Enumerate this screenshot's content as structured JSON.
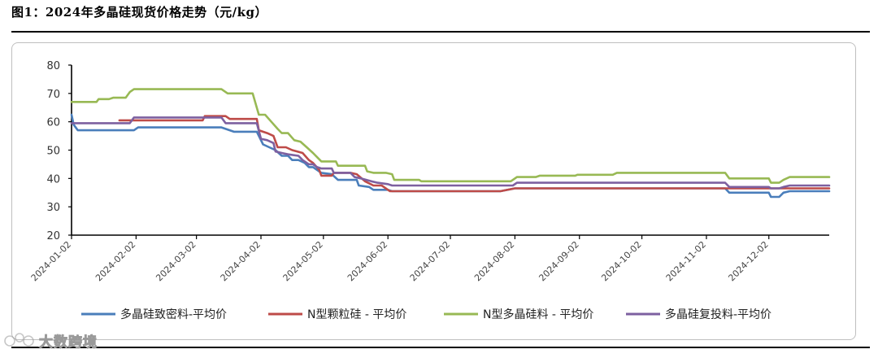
{
  "figure_title": "图1：2024年多晶硅现货价格走势（元/kg）",
  "watermark": {
    "text": "大数跨境",
    "color": "#9a9a9a"
  },
  "chart_data": {
    "type": "line",
    "title": "",
    "xlabel": "",
    "ylabel": "",
    "ylim": [
      20,
      80
    ],
    "yticks": [
      20,
      30,
      40,
      50,
      60,
      70,
      80
    ],
    "xlim": [
      "2024-01-02",
      "2024-12-31"
    ],
    "xticks": [
      "2024-01-02",
      "2024-02-02",
      "2024-03-02",
      "2024-04-02",
      "2024-05-02",
      "2024-06-02",
      "2024-07-02",
      "2024-08-02",
      "2024-09-02",
      "2024-10-02",
      "2024-11-02",
      "2024-12-02"
    ],
    "grid": false,
    "legend": "bottom",
    "series": [
      {
        "name": "多晶硅致密料-平均价",
        "color": "#4a7ebb",
        "points": [
          [
            "2024-01-02",
            62.5
          ],
          [
            "2024-01-03",
            59
          ],
          [
            "2024-01-05",
            57
          ],
          [
            "2024-02-01",
            57
          ],
          [
            "2024-02-03",
            58
          ],
          [
            "2024-03-14",
            58
          ],
          [
            "2024-03-20",
            56.5
          ],
          [
            "2024-03-31",
            56.5
          ],
          [
            "2024-04-03",
            52
          ],
          [
            "2024-04-06",
            51
          ],
          [
            "2024-04-09",
            50
          ],
          [
            "2024-04-12",
            48
          ],
          [
            "2024-04-15",
            48
          ],
          [
            "2024-04-17",
            46.5
          ],
          [
            "2024-04-20",
            46.5
          ],
          [
            "2024-04-23",
            45.5
          ],
          [
            "2024-04-25",
            44
          ],
          [
            "2024-04-27",
            44
          ],
          [
            "2024-04-29",
            43
          ],
          [
            "2024-05-01",
            42
          ],
          [
            "2024-05-06",
            41.5
          ],
          [
            "2024-05-09",
            39.5
          ],
          [
            "2024-05-18",
            39.5
          ],
          [
            "2024-05-19",
            37.5
          ],
          [
            "2024-05-24",
            37
          ],
          [
            "2024-05-26",
            36
          ],
          [
            "2024-06-02",
            36
          ],
          [
            "2024-06-04",
            35.5
          ],
          [
            "2024-07-01",
            35.5
          ],
          [
            "2024-07-26",
            35.5
          ],
          [
            "2024-08-02",
            36.5
          ],
          [
            "2024-11-11",
            36.5
          ],
          [
            "2024-11-13",
            35
          ],
          [
            "2024-11-28",
            35
          ],
          [
            "2024-12-02",
            35
          ],
          [
            "2024-12-03",
            33.5
          ],
          [
            "2024-12-07",
            33.5
          ],
          [
            "2024-12-09",
            35
          ],
          [
            "2024-12-12",
            35.5
          ],
          [
            "2024-12-31",
            35.5
          ]
        ]
      },
      {
        "name": "N型颗粒硅 - 平均价",
        "color": "#be4b48",
        "points": [
          [
            "2024-01-25",
            60.5
          ],
          [
            "2024-02-08",
            60.5
          ],
          [
            "2024-03-05",
            60.5
          ],
          [
            "2024-03-06",
            62
          ],
          [
            "2024-03-16",
            62
          ],
          [
            "2024-03-18",
            61
          ],
          [
            "2024-03-31",
            61
          ],
          [
            "2024-04-01",
            57
          ],
          [
            "2024-04-05",
            56
          ],
          [
            "2024-04-08",
            55
          ],
          [
            "2024-04-10",
            51
          ],
          [
            "2024-04-14",
            51
          ],
          [
            "2024-04-17",
            50
          ],
          [
            "2024-04-22",
            49
          ],
          [
            "2024-04-25",
            46.5
          ],
          [
            "2024-04-27",
            45.5
          ],
          [
            "2024-04-30",
            43
          ],
          [
            "2024-05-01",
            41
          ],
          [
            "2024-05-06",
            41
          ],
          [
            "2024-05-07",
            42
          ],
          [
            "2024-05-15",
            42
          ],
          [
            "2024-05-18",
            41.5
          ],
          [
            "2024-05-22",
            39
          ],
          [
            "2024-05-26",
            37.5
          ],
          [
            "2024-05-30",
            37.5
          ],
          [
            "2024-06-02",
            36
          ],
          [
            "2024-06-03",
            35.5
          ],
          [
            "2024-07-26",
            35.5
          ],
          [
            "2024-08-02",
            36.5
          ],
          [
            "2024-12-31",
            36.5
          ]
        ]
      },
      {
        "name": "N型多晶硅料 - 平均价",
        "color": "#98b954",
        "points": [
          [
            "2024-01-02",
            67
          ],
          [
            "2024-01-14",
            67
          ],
          [
            "2024-01-15",
            68
          ],
          [
            "2024-01-20",
            68
          ],
          [
            "2024-01-22",
            68.5
          ],
          [
            "2024-01-28",
            68.5
          ],
          [
            "2024-01-30",
            70.5
          ],
          [
            "2024-02-01",
            71.5
          ],
          [
            "2024-03-14",
            71.5
          ],
          [
            "2024-03-17",
            70
          ],
          [
            "2024-03-29",
            70
          ],
          [
            "2024-04-01",
            62.5
          ],
          [
            "2024-04-04",
            62.5
          ],
          [
            "2024-04-07",
            60
          ],
          [
            "2024-04-10",
            57.5
          ],
          [
            "2024-04-12",
            56
          ],
          [
            "2024-04-15",
            56
          ],
          [
            "2024-04-18",
            53.5
          ],
          [
            "2024-04-21",
            53
          ],
          [
            "2024-04-24",
            51
          ],
          [
            "2024-04-27",
            49
          ],
          [
            "2024-04-29",
            47.5
          ],
          [
            "2024-05-01",
            46
          ],
          [
            "2024-05-08",
            46
          ],
          [
            "2024-05-09",
            44.5
          ],
          [
            "2024-05-22",
            44.5
          ],
          [
            "2024-05-23",
            42.5
          ],
          [
            "2024-05-26",
            42
          ],
          [
            "2024-06-01",
            42
          ],
          [
            "2024-06-04",
            41.5
          ],
          [
            "2024-06-05",
            39.5
          ],
          [
            "2024-06-17",
            39.5
          ],
          [
            "2024-06-18",
            39
          ],
          [
            "2024-07-15",
            39
          ],
          [
            "2024-07-31",
            39
          ],
          [
            "2024-08-03",
            40.5
          ],
          [
            "2024-08-12",
            40.5
          ],
          [
            "2024-08-14",
            41
          ],
          [
            "2024-08-31",
            41
          ],
          [
            "2024-09-01",
            41.3
          ],
          [
            "2024-09-18",
            41.3
          ],
          [
            "2024-09-20",
            42
          ],
          [
            "2024-11-11",
            42
          ],
          [
            "2024-11-13",
            40
          ],
          [
            "2024-11-28",
            40
          ],
          [
            "2024-12-02",
            40
          ],
          [
            "2024-12-03",
            38.5
          ],
          [
            "2024-12-07",
            38.5
          ],
          [
            "2024-12-09",
            39.5
          ],
          [
            "2024-12-12",
            40.5
          ],
          [
            "2024-12-31",
            40.5
          ]
        ]
      },
      {
        "name": "多晶硅复投料-平均价",
        "color": "#7d60a0",
        "points": [
          [
            "2024-01-02",
            59.5
          ],
          [
            "2024-01-30",
            59.5
          ],
          [
            "2024-02-01",
            61.5
          ],
          [
            "2024-03-08",
            61.5
          ],
          [
            "2024-03-10",
            61.5
          ],
          [
            "2024-03-14",
            61.5
          ],
          [
            "2024-03-16",
            59.5
          ],
          [
            "2024-03-31",
            59.5
          ],
          [
            "2024-04-02",
            54
          ],
          [
            "2024-04-05",
            53.5
          ],
          [
            "2024-04-08",
            52.5
          ],
          [
            "2024-04-09",
            49.5
          ],
          [
            "2024-04-12",
            49
          ],
          [
            "2024-04-15",
            48.5
          ],
          [
            "2024-04-20",
            48
          ],
          [
            "2024-04-22",
            46.5
          ],
          [
            "2024-04-25",
            45
          ],
          [
            "2024-04-27",
            45
          ],
          [
            "2024-04-29",
            44
          ],
          [
            "2024-05-01",
            43.5
          ],
          [
            "2024-05-06",
            43.5
          ],
          [
            "2024-05-07",
            42
          ],
          [
            "2024-05-15",
            42
          ],
          [
            "2024-05-17",
            40.5
          ],
          [
            "2024-05-20",
            40
          ],
          [
            "2024-05-25",
            39
          ],
          [
            "2024-05-28",
            38.5
          ],
          [
            "2024-06-02",
            38
          ],
          [
            "2024-06-04",
            37.5
          ],
          [
            "2024-07-15",
            37.5
          ],
          [
            "2024-08-01",
            37.5
          ],
          [
            "2024-08-03",
            38.5
          ],
          [
            "2024-11-11",
            38.5
          ],
          [
            "2024-11-13",
            37
          ],
          [
            "2024-11-28",
            37
          ],
          [
            "2024-12-02",
            37
          ],
          [
            "2024-12-03",
            36.5
          ],
          [
            "2024-12-07",
            36.5
          ],
          [
            "2024-12-09",
            37
          ],
          [
            "2024-12-12",
            37.5
          ],
          [
            "2024-12-31",
            37.5
          ]
        ]
      }
    ]
  }
}
